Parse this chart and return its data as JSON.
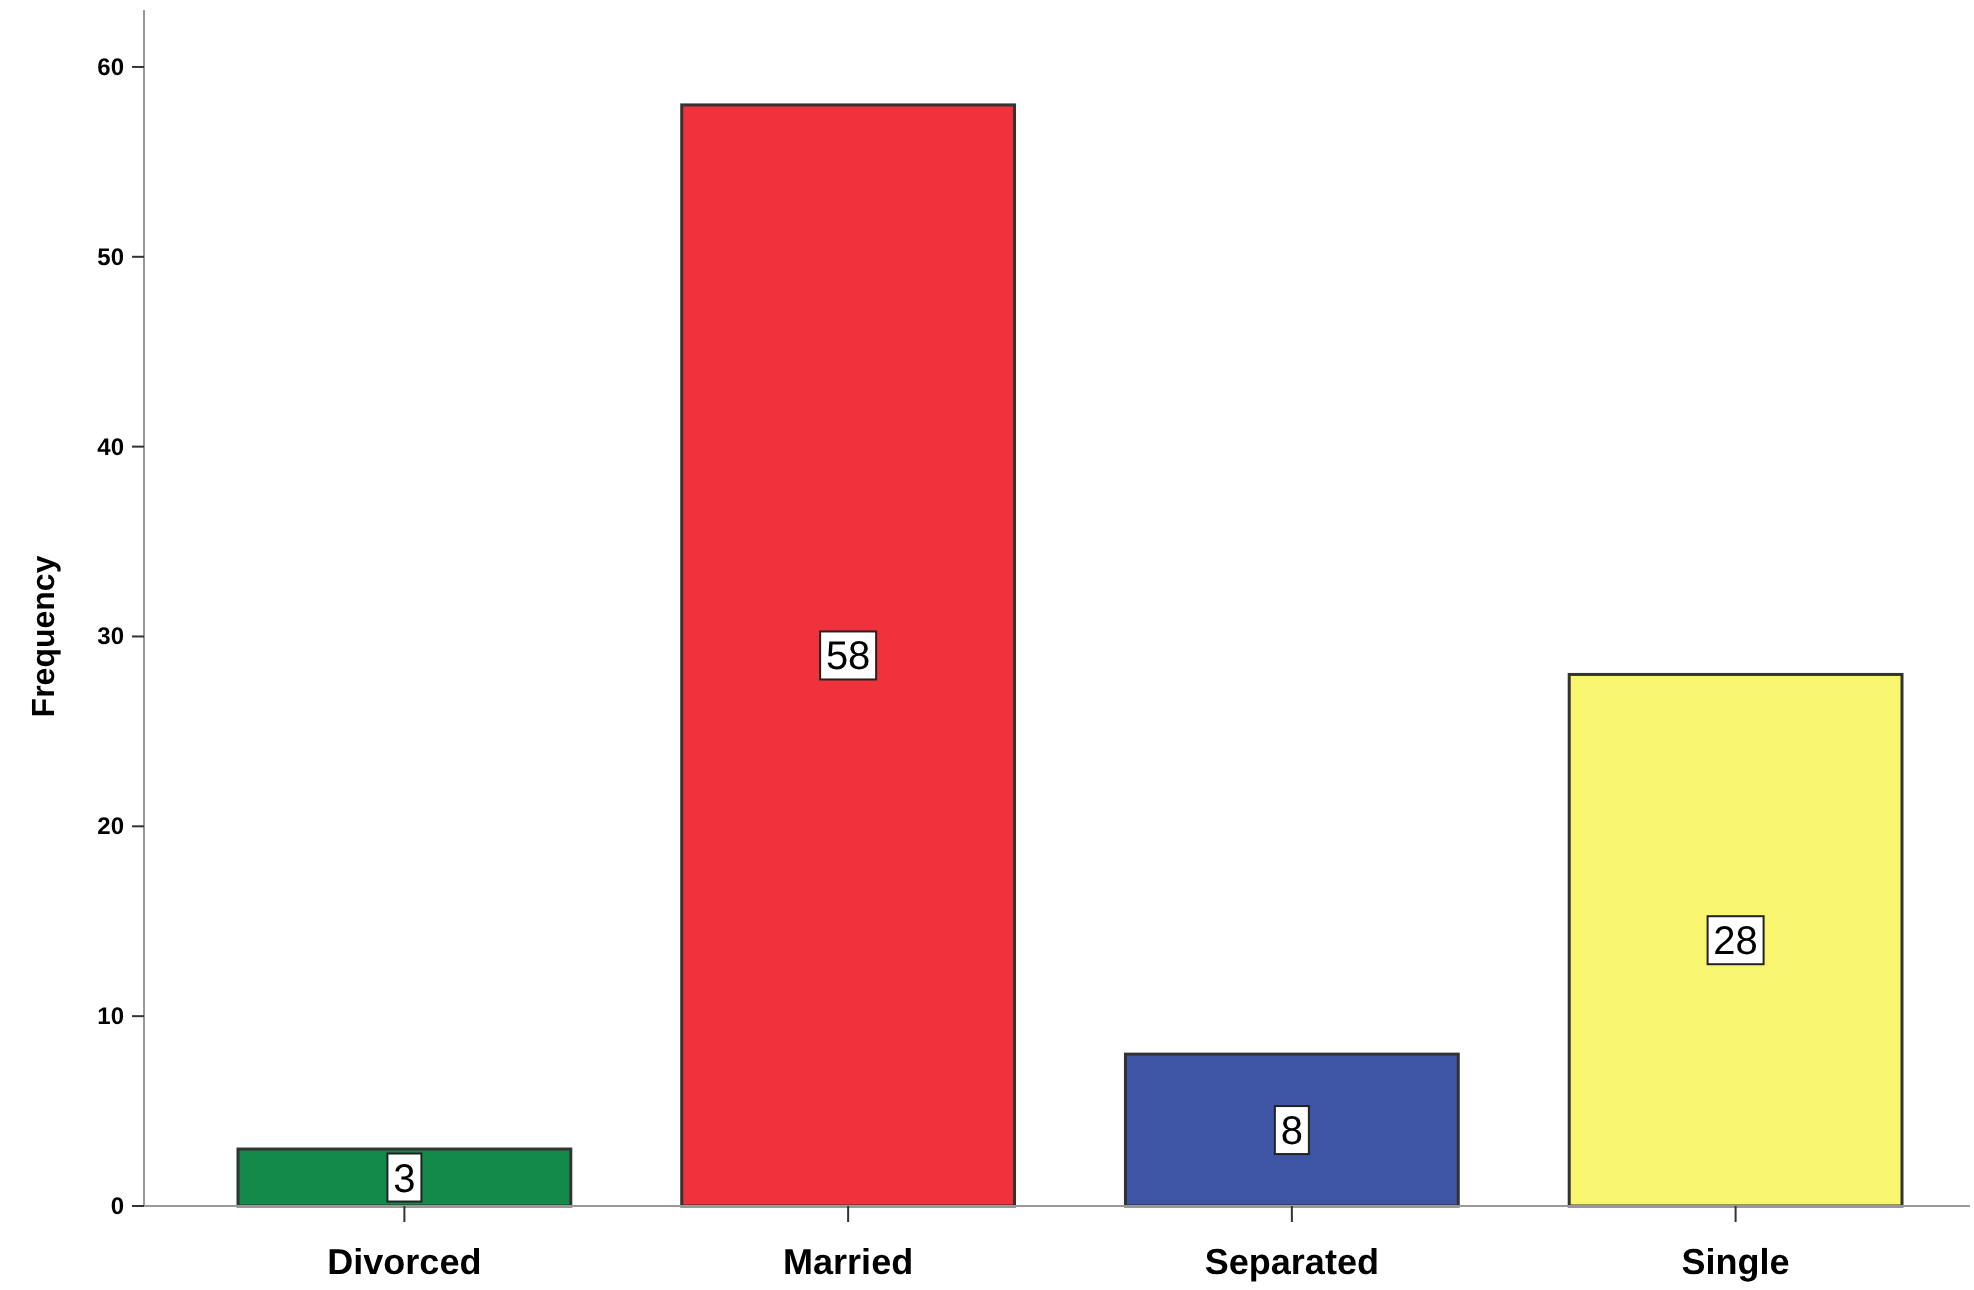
{
  "chart_data": {
    "type": "bar",
    "ylabel": "Frequency",
    "categories": [
      "Divorced",
      "Married",
      "Separated",
      "Single"
    ],
    "values": [
      3,
      58,
      8,
      28
    ],
    "colors": [
      "#13894a",
      "#ef323b",
      "#3e55a6",
      "#f8f56f"
    ],
    "ylim": [
      0,
      63
    ],
    "yticks": [
      0,
      10,
      20,
      30,
      40,
      50,
      60
    ],
    "data_labels": true
  }
}
